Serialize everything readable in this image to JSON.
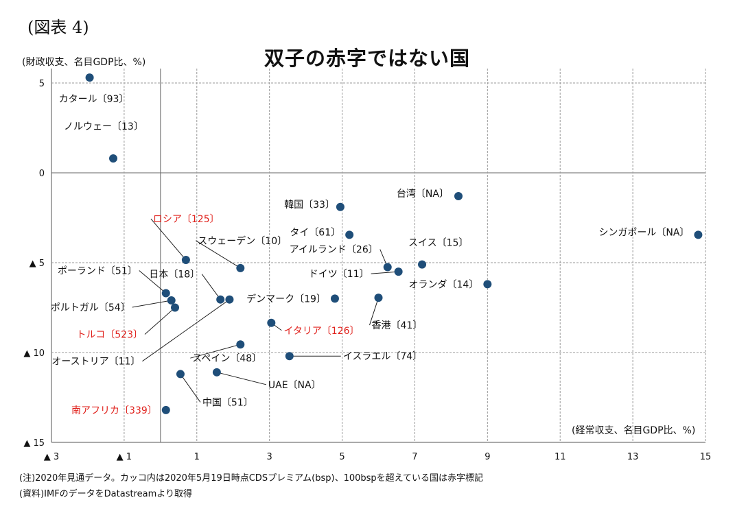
{
  "figure_label": "(図表 4)",
  "notes": {
    "note": "(注)2020年見通データ。カッコ内は2020年5月19日時点CDSプレミアム(bsp)、100bspを超えている国は赤字標記",
    "source": "(資料)IMFのデータをDatastreamより取得"
  },
  "colors": {
    "point": "#1f4e79",
    "highlight": "#e0201b",
    "text": "#111111",
    "grid": "#999999"
  },
  "chart_data": {
    "type": "scatter",
    "title": "双子の赤字ではない国",
    "xlabel": "(経常収支、名目GDP比、%)",
    "ylabel": "(財政収支、名目GDP比、%)",
    "xlim": [
      -3,
      15
    ],
    "ylim": [
      -15,
      5
    ],
    "x_ticks": [
      {
        "value": -3,
        "label": "▲ 3"
      },
      {
        "value": -1,
        "label": "▲ 1"
      },
      {
        "value": 1,
        "label": "1"
      },
      {
        "value": 3,
        "label": "3"
      },
      {
        "value": 5,
        "label": "5"
      },
      {
        "value": 7,
        "label": "7"
      },
      {
        "value": 9,
        "label": "9"
      },
      {
        "value": 11,
        "label": "11"
      },
      {
        "value": 13,
        "label": "13"
      },
      {
        "value": 15,
        "label": "15"
      }
    ],
    "y_ticks": [
      {
        "value": 5,
        "label": "5"
      },
      {
        "value": 0,
        "label": "0"
      },
      {
        "value": -5,
        "label": "▲ 5"
      },
      {
        "value": -10,
        "label": "▲ 10"
      },
      {
        "value": -15,
        "label": "▲ 15"
      }
    ],
    "grid": true,
    "points": [
      {
        "label": "カタール〔93〕",
        "x": -1.95,
        "y": 5.3,
        "highlight": false
      },
      {
        "label": "ノルウェー〔13〕",
        "x": -1.3,
        "y": 0.8,
        "highlight": false
      },
      {
        "label": "韓国〔33〕",
        "x": 4.95,
        "y": -1.9,
        "highlight": false
      },
      {
        "label": "台湾〔NA〕",
        "x": 8.2,
        "y": -1.3,
        "highlight": false
      },
      {
        "label": "シンガポール〔NA〕",
        "x": 14.8,
        "y": -3.45,
        "highlight": false
      },
      {
        "label": "ロシア〔125〕",
        "x": 0.7,
        "y": -4.85,
        "highlight": true
      },
      {
        "label": "スウェーデン〔10〕",
        "x": 2.2,
        "y": -5.3,
        "highlight": false
      },
      {
        "label": "タイ〔61〕",
        "x": 5.2,
        "y": -3.45,
        "highlight": false
      },
      {
        "label": "アイルランド〔26〕",
        "x": 6.25,
        "y": -5.25,
        "highlight": false
      },
      {
        "label": "スイス〔15〕",
        "x": 7.2,
        "y": -5.1,
        "highlight": false
      },
      {
        "label": "ドイツ〔11〕",
        "x": 6.55,
        "y": -5.5,
        "highlight": false
      },
      {
        "label": "オランダ〔14〕",
        "x": 9.0,
        "y": -6.2,
        "highlight": false
      },
      {
        "label": "ポーランド〔51〕",
        "x": 0.15,
        "y": -6.7,
        "highlight": false
      },
      {
        "label": "日本〔18〕",
        "x": 1.65,
        "y": -7.05,
        "highlight": false
      },
      {
        "label": "デンマーク〔19〕",
        "x": 4.8,
        "y": -7.0,
        "highlight": false
      },
      {
        "label": "香港〔41〕",
        "x": 6.0,
        "y": -6.95,
        "highlight": false
      },
      {
        "label": "ポルトガル〔54〕",
        "x": 0.3,
        "y": -7.1,
        "highlight": false
      },
      {
        "label": "トルコ〔523〕",
        "x": 0.4,
        "y": -7.5,
        "highlight": true
      },
      {
        "label": "オーストリア〔11〕",
        "x": 1.9,
        "y": -7.05,
        "highlight": false
      },
      {
        "label": "イタリア〔126〕",
        "x": 3.05,
        "y": -8.35,
        "highlight": true
      },
      {
        "label": "スペイン〔48〕",
        "x": 2.2,
        "y": -9.55,
        "highlight": false
      },
      {
        "label": "イスラエル〔74〕",
        "x": 3.55,
        "y": -10.2,
        "highlight": false
      },
      {
        "label": "UAE〔NA〕",
        "x": 1.55,
        "y": -11.1,
        "highlight": false
      },
      {
        "label": "中国〔51〕",
        "x": 0.55,
        "y": -11.2,
        "highlight": false
      },
      {
        "label": "南アフリカ〔339〕",
        "x": 0.15,
        "y": -13.2,
        "highlight": true
      }
    ]
  }
}
